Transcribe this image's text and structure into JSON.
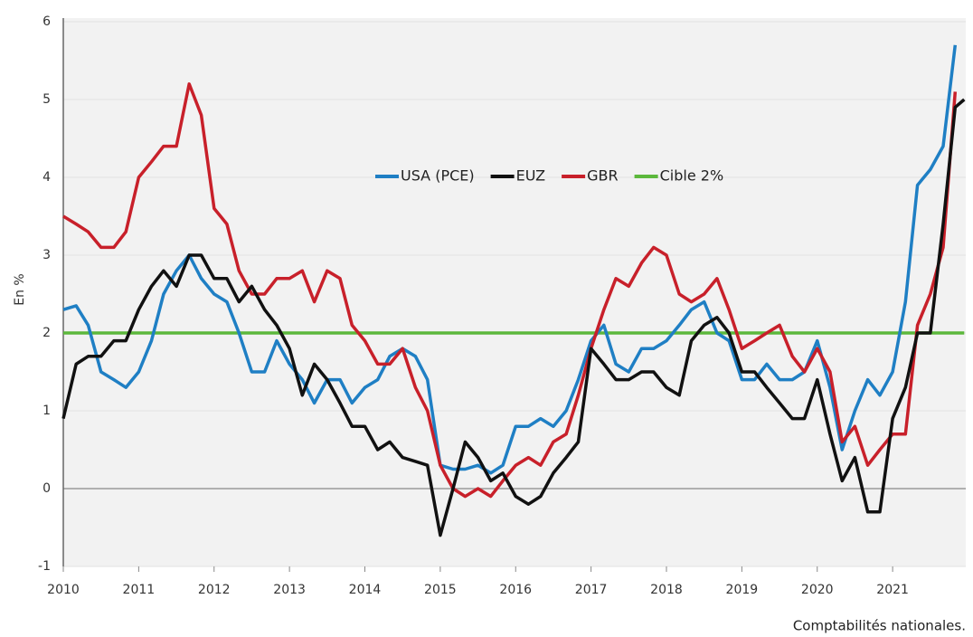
{
  "chart_data": {
    "type": "line",
    "y_label": "En %",
    "source": "Comptabilités nationales.",
    "x": [
      2010,
      2010.17,
      2010.33,
      2010.5,
      2010.67,
      2010.83,
      2011,
      2011.17,
      2011.33,
      2011.5,
      2011.67,
      2011.83,
      2012,
      2012.17,
      2012.33,
      2012.5,
      2012.67,
      2012.83,
      2013,
      2013.17,
      2013.33,
      2013.5,
      2013.67,
      2013.83,
      2014,
      2014.17,
      2014.33,
      2014.5,
      2014.67,
      2014.83,
      2015,
      2015.17,
      2015.33,
      2015.5,
      2015.67,
      2015.83,
      2016,
      2016.17,
      2016.33,
      2016.5,
      2016.67,
      2016.83,
      2017,
      2017.17,
      2017.33,
      2017.5,
      2017.67,
      2017.83,
      2018,
      2018.17,
      2018.33,
      2018.5,
      2018.67,
      2018.83,
      2019,
      2019.17,
      2019.33,
      2019.5,
      2019.67,
      2019.83,
      2020,
      2020.17,
      2020.33,
      2020.5,
      2020.67,
      2020.83,
      2021,
      2021.17,
      2021.33,
      2021.5,
      2021.67,
      2021.83,
      2021.95
    ],
    "series": [
      {
        "name": "USA (PCE)",
        "color": "#1f7fc4",
        "values": [
          2.3,
          2.35,
          2.1,
          1.5,
          1.4,
          1.3,
          1.5,
          1.9,
          2.5,
          2.8,
          3.0,
          2.7,
          2.5,
          2.4,
          2.0,
          1.5,
          1.5,
          1.9,
          1.6,
          1.4,
          1.1,
          1.4,
          1.4,
          1.1,
          1.3,
          1.4,
          1.7,
          1.8,
          1.7,
          1.4,
          0.3,
          0.25,
          0.25,
          0.3,
          0.2,
          0.3,
          0.8,
          0.8,
          0.9,
          0.8,
          1.0,
          1.4,
          1.9,
          2.1,
          1.6,
          1.5,
          1.8,
          1.8,
          1.9,
          2.1,
          2.3,
          2.4,
          2.0,
          1.9,
          1.4,
          1.4,
          1.6,
          1.4,
          1.4,
          1.5,
          1.9,
          1.3,
          0.5,
          1.0,
          1.4,
          1.2,
          1.5,
          2.4,
          3.9,
          4.1,
          4.4,
          5.7,
          null
        ]
      },
      {
        "name": "EUZ",
        "color": "#111111",
        "values": [
          0.9,
          1.6,
          1.7,
          1.7,
          1.9,
          1.9,
          2.3,
          2.6,
          2.8,
          2.6,
          3.0,
          3.0,
          2.7,
          2.7,
          2.4,
          2.6,
          2.3,
          2.1,
          1.8,
          1.2,
          1.6,
          1.4,
          1.1,
          0.8,
          0.8,
          0.5,
          0.6,
          0.4,
          0.35,
          0.3,
          -0.6,
          0.0,
          0.6,
          0.4,
          0.1,
          0.2,
          -0.1,
          -0.2,
          -0.1,
          0.2,
          0.4,
          0.6,
          1.8,
          1.6,
          1.4,
          1.4,
          1.5,
          1.5,
          1.3,
          1.2,
          1.9,
          2.1,
          2.2,
          2.0,
          1.5,
          1.5,
          1.3,
          1.1,
          0.9,
          0.9,
          1.4,
          0.7,
          0.1,
          0.4,
          -0.3,
          -0.3,
          0.9,
          1.3,
          2.0,
          2.0,
          3.4,
          4.9,
          5.0
        ]
      },
      {
        "name": "GBR",
        "color": "#c8202a",
        "values": [
          3.5,
          3.4,
          3.3,
          3.1,
          3.1,
          3.3,
          4.0,
          4.2,
          4.4,
          4.4,
          5.2,
          4.8,
          3.6,
          3.4,
          2.8,
          2.5,
          2.5,
          2.7,
          2.7,
          2.8,
          2.4,
          2.8,
          2.7,
          2.1,
          1.9,
          1.6,
          1.6,
          1.8,
          1.3,
          1.0,
          0.3,
          0.0,
          -0.1,
          0.0,
          -0.1,
          0.1,
          0.3,
          0.4,
          0.3,
          0.6,
          0.7,
          1.2,
          1.8,
          2.3,
          2.7,
          2.6,
          2.9,
          3.1,
          3.0,
          2.5,
          2.4,
          2.5,
          2.7,
          2.3,
          1.8,
          1.9,
          2.0,
          2.1,
          1.7,
          1.5,
          1.8,
          1.5,
          0.6,
          0.8,
          0.3,
          0.5,
          0.7,
          0.7,
          2.1,
          2.5,
          3.1,
          5.1,
          null
        ]
      },
      {
        "name": "Cible 2%",
        "color": "#5cb83c",
        "values": [
          2,
          2,
          2,
          2,
          2,
          2,
          2,
          2,
          2,
          2,
          2,
          2,
          2,
          2,
          2,
          2,
          2,
          2,
          2,
          2,
          2,
          2,
          2,
          2,
          2,
          2,
          2,
          2,
          2,
          2,
          2,
          2,
          2,
          2,
          2,
          2,
          2,
          2,
          2,
          2,
          2,
          2,
          2,
          2,
          2,
          2,
          2,
          2,
          2,
          2,
          2,
          2,
          2,
          2,
          2,
          2,
          2,
          2,
          2,
          2,
          2,
          2,
          2,
          2,
          2,
          2,
          2,
          2,
          2,
          2,
          2,
          2,
          2
        ]
      }
    ],
    "xlim": [
      2010,
      2021.97
    ],
    "xticks": [
      2010,
      2011,
      2012,
      2013,
      2014,
      2015,
      2016,
      2017,
      2018,
      2019,
      2020,
      2021
    ],
    "ylim": [
      -1,
      6
    ],
    "yticks": [
      -1,
      0,
      1,
      2,
      3,
      4,
      5,
      6
    ],
    "grid": true,
    "legend": "top"
  }
}
